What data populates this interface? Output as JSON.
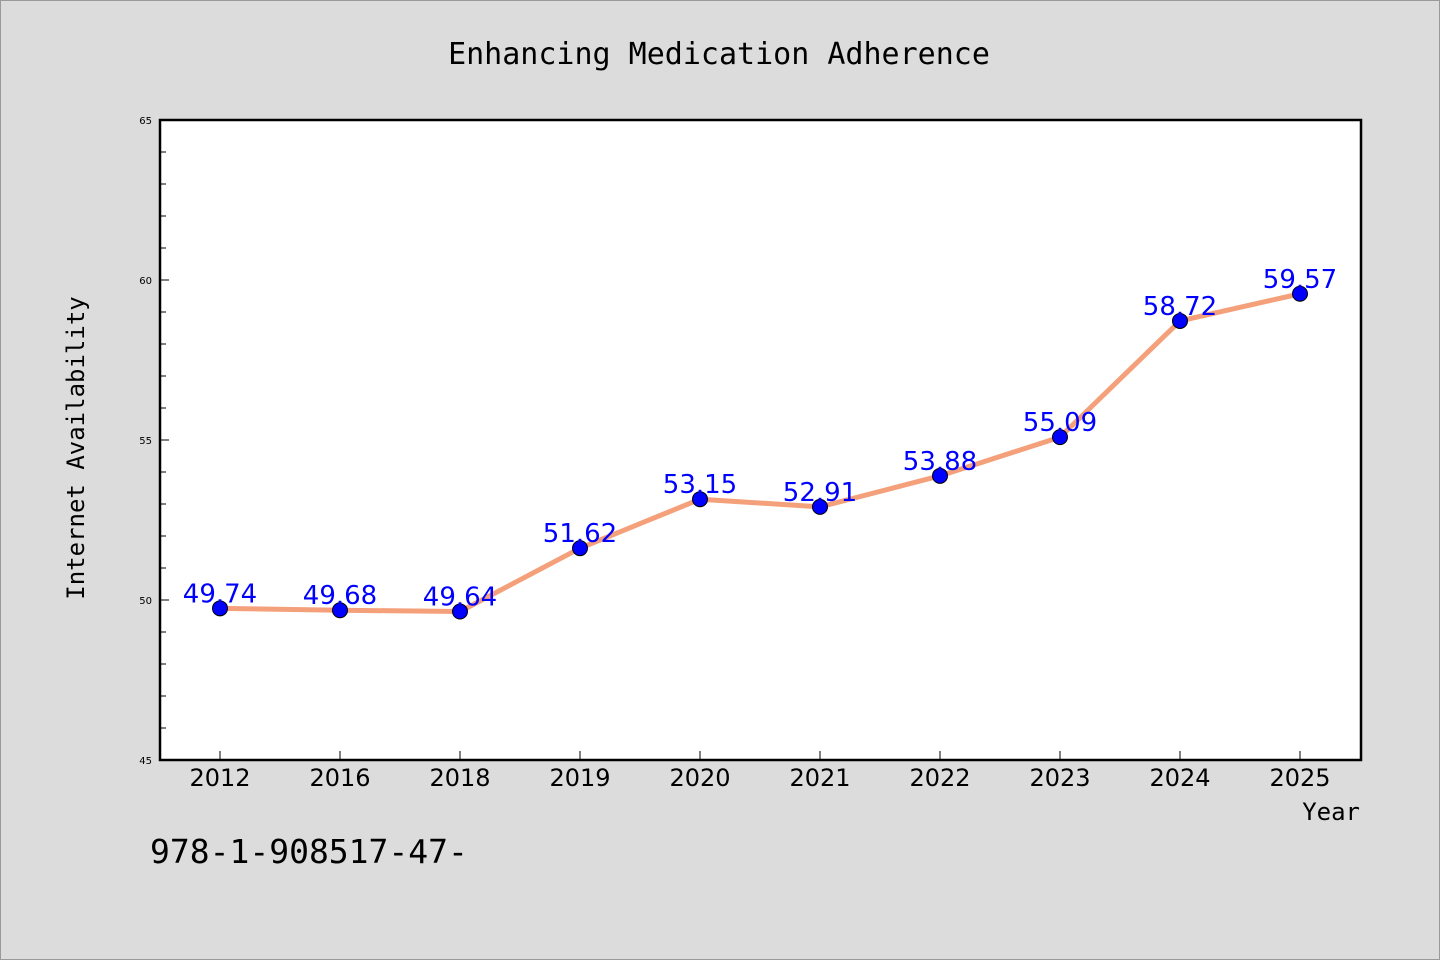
{
  "chart_data": {
    "type": "line",
    "title": "Enhancing Medication Adherence",
    "xlabel": "Year",
    "ylabel": "Internet Availability",
    "categories": [
      "2012",
      "2016",
      "2018",
      "2019",
      "2020",
      "2021",
      "2022",
      "2023",
      "2024",
      "2025"
    ],
    "values": [
      49.74,
      49.68,
      49.64,
      51.62,
      53.15,
      52.91,
      53.88,
      55.09,
      58.72,
      59.57
    ],
    "data_labels": [
      "49.74",
      "49.68",
      "49.64",
      "51.62",
      "53.15",
      "52.91",
      "53.88",
      "55.09",
      "58.72",
      "59.57"
    ],
    "ylim": [
      45,
      65
    ],
    "yticks": [
      "45",
      "50",
      "55",
      "60",
      "65"
    ],
    "grid": false,
    "legend": "none",
    "line_color": "#f4a07a",
    "marker_color": "#0000ff",
    "label_color": "#0000ff",
    "background": "#dcdcdc",
    "plot_background": "#ffffff"
  },
  "footer": {
    "isbn": "978-1-908517-47-"
  }
}
